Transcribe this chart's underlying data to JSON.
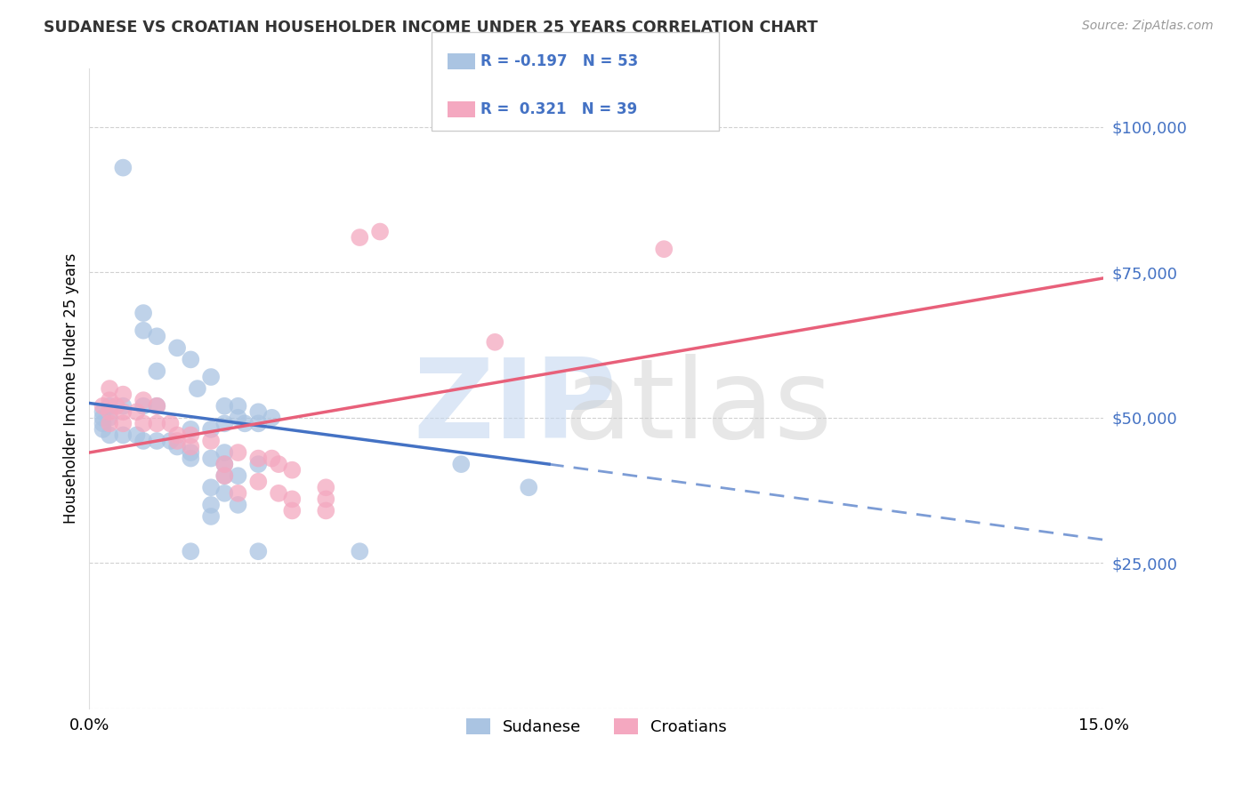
{
  "title": "SUDANESE VS CROATIAN HOUSEHOLDER INCOME UNDER 25 YEARS CORRELATION CHART",
  "source": "Source: ZipAtlas.com",
  "ylabel": "Householder Income Under 25 years",
  "xlim": [
    0.0,
    0.15
  ],
  "ylim": [
    0,
    110000
  ],
  "yticks": [
    0,
    25000,
    50000,
    75000,
    100000
  ],
  "ytick_labels": [
    "",
    "$25,000",
    "$50,000",
    "$75,000",
    "$100,000"
  ],
  "legend_r_sudanese": "-0.197",
  "legend_n_sudanese": "53",
  "legend_r_croatian": "0.321",
  "legend_n_croatian": "39",
  "sudanese_color": "#aac4e2",
  "croatian_color": "#f4a8c0",
  "sudanese_line_color": "#4472c4",
  "croatian_line_color": "#e8607a",
  "sudanese_scatter": [
    [
      0.005,
      93000
    ],
    [
      0.008,
      68000
    ],
    [
      0.01,
      64000
    ],
    [
      0.013,
      62000
    ],
    [
      0.01,
      58000
    ],
    [
      0.008,
      65000
    ],
    [
      0.015,
      60000
    ],
    [
      0.018,
      57000
    ],
    [
      0.016,
      55000
    ],
    [
      0.02,
      52000
    ],
    [
      0.022,
      52000
    ],
    [
      0.025,
      51000
    ],
    [
      0.022,
      50000
    ],
    [
      0.027,
      50000
    ],
    [
      0.025,
      49000
    ],
    [
      0.023,
      49000
    ],
    [
      0.02,
      49000
    ],
    [
      0.018,
      48000
    ],
    [
      0.015,
      48000
    ],
    [
      0.01,
      52000
    ],
    [
      0.008,
      52000
    ],
    [
      0.005,
      52000
    ],
    [
      0.003,
      52000
    ],
    [
      0.003,
      50000
    ],
    [
      0.002,
      51000
    ],
    [
      0.002,
      50000
    ],
    [
      0.002,
      49000
    ],
    [
      0.002,
      48000
    ],
    [
      0.003,
      47000
    ],
    [
      0.005,
      47000
    ],
    [
      0.007,
      47000
    ],
    [
      0.008,
      46000
    ],
    [
      0.01,
      46000
    ],
    [
      0.012,
      46000
    ],
    [
      0.013,
      45000
    ],
    [
      0.015,
      44000
    ],
    [
      0.02,
      44000
    ],
    [
      0.015,
      43000
    ],
    [
      0.018,
      43000
    ],
    [
      0.02,
      42000
    ],
    [
      0.025,
      42000
    ],
    [
      0.02,
      40000
    ],
    [
      0.022,
      40000
    ],
    [
      0.018,
      38000
    ],
    [
      0.02,
      37000
    ],
    [
      0.018,
      35000
    ],
    [
      0.022,
      35000
    ],
    [
      0.018,
      33000
    ],
    [
      0.055,
      42000
    ],
    [
      0.065,
      38000
    ],
    [
      0.015,
      27000
    ],
    [
      0.025,
      27000
    ],
    [
      0.04,
      27000
    ]
  ],
  "croatian_scatter": [
    [
      0.002,
      52000
    ],
    [
      0.003,
      55000
    ],
    [
      0.003,
      53000
    ],
    [
      0.004,
      52000
    ],
    [
      0.005,
      54000
    ],
    [
      0.008,
      53000
    ],
    [
      0.01,
      52000
    ],
    [
      0.007,
      51000
    ],
    [
      0.005,
      51000
    ],
    [
      0.003,
      51000
    ],
    [
      0.003,
      49000
    ],
    [
      0.005,
      49000
    ],
    [
      0.008,
      49000
    ],
    [
      0.01,
      49000
    ],
    [
      0.012,
      49000
    ],
    [
      0.013,
      47000
    ],
    [
      0.015,
      47000
    ],
    [
      0.013,
      46000
    ],
    [
      0.018,
      46000
    ],
    [
      0.015,
      45000
    ],
    [
      0.022,
      44000
    ],
    [
      0.025,
      43000
    ],
    [
      0.027,
      43000
    ],
    [
      0.02,
      42000
    ],
    [
      0.028,
      42000
    ],
    [
      0.03,
      41000
    ],
    [
      0.02,
      40000
    ],
    [
      0.025,
      39000
    ],
    [
      0.035,
      38000
    ],
    [
      0.022,
      37000
    ],
    [
      0.028,
      37000
    ],
    [
      0.03,
      36000
    ],
    [
      0.035,
      36000
    ],
    [
      0.03,
      34000
    ],
    [
      0.035,
      34000
    ],
    [
      0.04,
      81000
    ],
    [
      0.043,
      82000
    ],
    [
      0.085,
      79000
    ],
    [
      0.06,
      63000
    ]
  ],
  "sudanese_line": {
    "x0": 0.0,
    "y0": 52500,
    "x1": 0.068,
    "y1": 42000,
    "dash_x1": 0.15,
    "dash_y1": 29000
  },
  "croatian_line": {
    "x0": 0.0,
    "y0": 44000,
    "x1": 0.15,
    "y1": 74000
  },
  "background_color": "#ffffff",
  "grid_color": "#cccccc"
}
